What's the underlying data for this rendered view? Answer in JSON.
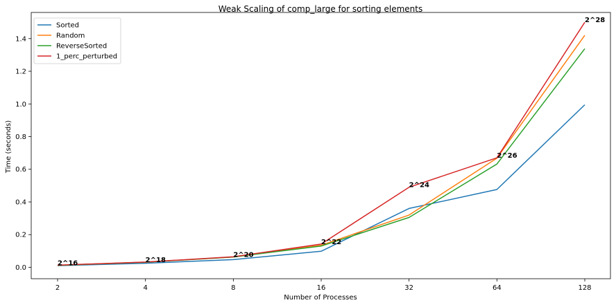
{
  "chart_data": {
    "type": "line",
    "title": "Weak Scaling of comp_large for sorting elements",
    "xlabel": "Number of Processes",
    "ylabel": "Time (seconds)",
    "x_scale": "log2",
    "categories": [
      "2",
      "4",
      "8",
      "16",
      "32",
      "64",
      "128"
    ],
    "x": [
      2,
      4,
      8,
      16,
      32,
      64,
      128
    ],
    "ylim": [
      -0.07,
      1.56
    ],
    "yticks": [
      "0.0",
      "0.2",
      "0.4",
      "0.6",
      "0.8",
      "1.0",
      "1.2",
      "1.4"
    ],
    "ytick_values": [
      0,
      0.2,
      0.4,
      0.6,
      0.8,
      1.0,
      1.2,
      1.4
    ],
    "grid": false,
    "legend_position": "top-left",
    "series": [
      {
        "name": "Sorted",
        "color": "#1f77b4",
        "values": [
          0.01,
          0.025,
          0.047,
          0.098,
          0.36,
          0.476,
          0.995
        ]
      },
      {
        "name": "Random",
        "color": "#ff7f0e",
        "values": [
          0.012,
          0.031,
          0.063,
          0.135,
          0.32,
          0.668,
          1.42
        ]
      },
      {
        "name": "ReverseSorted",
        "color": "#2ca02c",
        "values": [
          0.012,
          0.031,
          0.063,
          0.13,
          0.305,
          0.632,
          1.338
        ]
      },
      {
        "name": "1_perc_perturbed",
        "color": "#d62728",
        "values": [
          0.013,
          0.032,
          0.064,
          0.142,
          0.49,
          0.67,
          1.5
        ]
      }
    ],
    "annotations": [
      {
        "text": "2^16",
        "x": 2,
        "y": 0.013
      },
      {
        "text": "2^18",
        "x": 4,
        "y": 0.032
      },
      {
        "text": "2^20",
        "x": 8,
        "y": 0.064
      },
      {
        "text": "2^22",
        "x": 16,
        "y": 0.142
      },
      {
        "text": "2^24",
        "x": 32,
        "y": 0.49
      },
      {
        "text": "2^26",
        "x": 64,
        "y": 0.67
      },
      {
        "text": "2^28",
        "x": 128,
        "y": 1.5
      }
    ]
  }
}
